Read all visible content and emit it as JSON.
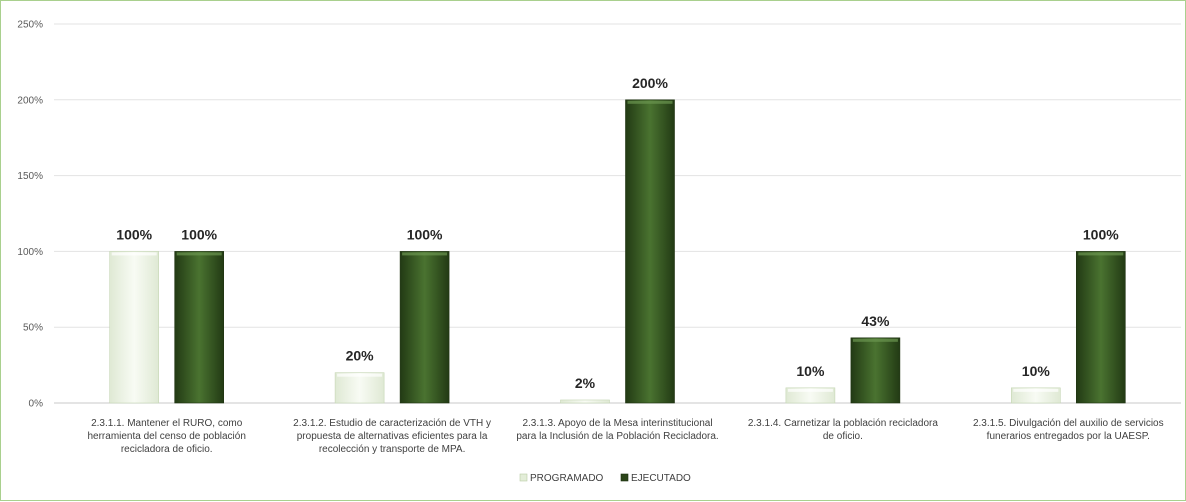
{
  "chart_data": {
    "type": "bar",
    "categories": [
      [
        "2.3.1.1. Mantener el RURO, como",
        "herramienta del censo de población",
        "recicladora de oficio."
      ],
      [
        "2.3.1.2. Estudio de caracterización de VTH y",
        "propuesta de alternativas eficientes para la",
        "recolección y transporte de MPA."
      ],
      [
        "2.3.1.3. Apoyo de la Mesa interinstitucional",
        "para la Inclusión de la Población Recicladora."
      ],
      [
        "2.3.1.4. Carnetizar la población recicladora",
        "de oficio."
      ],
      [
        "2.3.1.5. Divulgación del auxilio de servicios",
        "funerarios entregados por la UAESP."
      ]
    ],
    "series": [
      {
        "name": "PROGRAMADO",
        "values": [
          100,
          20,
          2,
          10,
          10
        ],
        "labels": [
          "100%",
          "20%",
          "2%",
          "10%",
          "10%"
        ],
        "color": "#eef5e6"
      },
      {
        "name": "EJECUTADO",
        "values": [
          100,
          100,
          200,
          43,
          100
        ],
        "labels": [
          "100%",
          "100%",
          "200%",
          "43%",
          "100%"
        ],
        "color": "#375623"
      }
    ],
    "yticks": [
      "0%",
      "50%",
      "100%",
      "150%",
      "200%",
      "250%"
    ],
    "ylim": [
      0,
      250
    ],
    "grid": true,
    "legend": "bottom-center"
  }
}
